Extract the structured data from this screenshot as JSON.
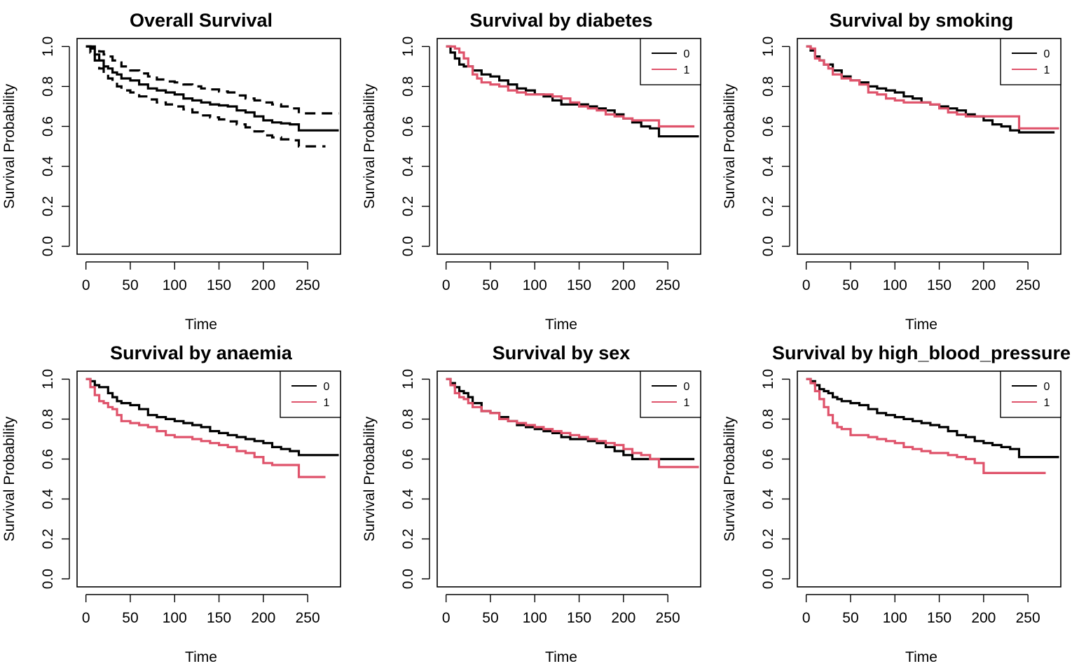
{
  "colors": {
    "group_0": "#000000",
    "group_1": "#DF536B",
    "axis": "#000000",
    "background": "#FFFFFF"
  },
  "chart_data": [
    {
      "type": "line",
      "title": "Overall Survival",
      "xlabel": "Time",
      "ylabel": "Survival Probability",
      "xlim": [
        -10,
        287
      ],
      "ylim": [
        -0.04,
        1.04
      ],
      "xticks": [
        "0",
        "50",
        "100",
        "150",
        "200",
        "250"
      ],
      "yticks": [
        "0.0",
        "0.2",
        "0.4",
        "0.6",
        "0.8",
        "1.0"
      ],
      "grid": false,
      "legend": null,
      "series": [
        {
          "style": "solid",
          "color": "#000000",
          "x": [
            0,
            5,
            10,
            15,
            20,
            25,
            30,
            35,
            40,
            50,
            60,
            70,
            80,
            90,
            100,
            110,
            120,
            130,
            140,
            150,
            160,
            170,
            180,
            190,
            200,
            210,
            220,
            230,
            240,
            250,
            260,
            270,
            285
          ],
          "y": [
            1.0,
            0.99,
            0.96,
            0.93,
            0.9,
            0.89,
            0.87,
            0.86,
            0.84,
            0.83,
            0.81,
            0.79,
            0.78,
            0.77,
            0.76,
            0.74,
            0.73,
            0.72,
            0.71,
            0.705,
            0.7,
            0.68,
            0.67,
            0.65,
            0.63,
            0.62,
            0.615,
            0.61,
            0.58,
            0.58,
            0.58,
            0.58,
            0.58
          ]
        },
        {
          "style": "dashed",
          "color": "#000000",
          "x": [
            0,
            5,
            10,
            15,
            20,
            25,
            30,
            35,
            40,
            50,
            60,
            70,
            80,
            90,
            100,
            110,
            120,
            130,
            140,
            150,
            160,
            170,
            180,
            190,
            200,
            210,
            220,
            230,
            240,
            250,
            260,
            270,
            285
          ],
          "y": [
            1.0,
            1.0,
            0.99,
            0.975,
            0.96,
            0.95,
            0.93,
            0.92,
            0.9,
            0.88,
            0.865,
            0.85,
            0.835,
            0.825,
            0.82,
            0.81,
            0.8,
            0.79,
            0.785,
            0.775,
            0.77,
            0.755,
            0.74,
            0.73,
            0.72,
            0.71,
            0.7,
            0.69,
            0.665,
            0.665,
            0.665,
            0.665,
            0.665
          ]
        },
        {
          "style": "dashed",
          "color": "#000000",
          "x": [
            0,
            5,
            10,
            15,
            20,
            25,
            30,
            35,
            40,
            50,
            60,
            70,
            80,
            90,
            100,
            110,
            120,
            130,
            140,
            150,
            160,
            170,
            180,
            190,
            200,
            210,
            220,
            230,
            240,
            250,
            260,
            270
          ],
          "y": [
            1.0,
            0.97,
            0.93,
            0.89,
            0.86,
            0.84,
            0.82,
            0.8,
            0.78,
            0.77,
            0.75,
            0.735,
            0.72,
            0.71,
            0.7,
            0.685,
            0.67,
            0.655,
            0.645,
            0.635,
            0.625,
            0.61,
            0.595,
            0.575,
            0.555,
            0.545,
            0.535,
            0.53,
            0.5,
            0.5,
            0.5,
            0.5
          ]
        }
      ]
    },
    {
      "type": "line",
      "title": "Survival by diabetes",
      "xlabel": "Time",
      "ylabel": "Survival Probability",
      "xlim": [
        -10,
        287
      ],
      "ylim": [
        -0.04,
        1.04
      ],
      "xticks": [
        "0",
        "50",
        "100",
        "150",
        "200",
        "250"
      ],
      "yticks": [
        "0.0",
        "0.2",
        "0.4",
        "0.6",
        "0.8",
        "1.0"
      ],
      "grid": false,
      "legend": "top-right",
      "series": [
        {
          "name": "0",
          "color": "#000000",
          "x": [
            0,
            5,
            10,
            15,
            20,
            30,
            40,
            50,
            60,
            70,
            80,
            90,
            100,
            110,
            120,
            130,
            140,
            150,
            160,
            170,
            180,
            190,
            200,
            210,
            220,
            230,
            240,
            250,
            260,
            270,
            285
          ],
          "y": [
            1.0,
            0.97,
            0.94,
            0.91,
            0.9,
            0.88,
            0.86,
            0.85,
            0.83,
            0.81,
            0.79,
            0.78,
            0.76,
            0.75,
            0.73,
            0.71,
            0.71,
            0.71,
            0.7,
            0.69,
            0.68,
            0.66,
            0.64,
            0.62,
            0.6,
            0.59,
            0.55,
            0.55,
            0.55,
            0.55,
            0.55
          ]
        },
        {
          "name": "1",
          "color": "#DF536B",
          "x": [
            0,
            5,
            10,
            15,
            20,
            25,
            30,
            35,
            40,
            50,
            60,
            70,
            80,
            90,
            100,
            110,
            120,
            130,
            140,
            150,
            160,
            170,
            180,
            190,
            200,
            210,
            220,
            230,
            240,
            250,
            260,
            270,
            280
          ],
          "y": [
            1.0,
            1.0,
            0.99,
            0.97,
            0.94,
            0.9,
            0.86,
            0.84,
            0.82,
            0.81,
            0.8,
            0.78,
            0.77,
            0.76,
            0.76,
            0.76,
            0.75,
            0.74,
            0.72,
            0.7,
            0.69,
            0.68,
            0.66,
            0.65,
            0.64,
            0.63,
            0.63,
            0.63,
            0.6,
            0.6,
            0.6,
            0.6,
            0.6
          ]
        }
      ]
    },
    {
      "type": "line",
      "title": "Survival by smoking",
      "xlabel": "Time",
      "ylabel": "Survival Probability",
      "xlim": [
        -10,
        287
      ],
      "ylim": [
        -0.04,
        1.04
      ],
      "xticks": [
        "0",
        "50",
        "100",
        "150",
        "200",
        "250"
      ],
      "yticks": [
        "0.0",
        "0.2",
        "0.4",
        "0.6",
        "0.8",
        "1.0"
      ],
      "grid": false,
      "legend": "top-right",
      "series": [
        {
          "name": "0",
          "color": "#000000",
          "x": [
            0,
            5,
            10,
            15,
            20,
            30,
            40,
            50,
            60,
            70,
            80,
            90,
            100,
            110,
            120,
            130,
            140,
            150,
            160,
            170,
            180,
            190,
            200,
            210,
            220,
            230,
            240,
            250,
            260,
            270,
            280
          ],
          "y": [
            1.0,
            0.98,
            0.95,
            0.93,
            0.91,
            0.88,
            0.85,
            0.83,
            0.82,
            0.8,
            0.79,
            0.78,
            0.77,
            0.75,
            0.74,
            0.72,
            0.71,
            0.7,
            0.69,
            0.68,
            0.66,
            0.65,
            0.63,
            0.61,
            0.6,
            0.58,
            0.57,
            0.57,
            0.57,
            0.57,
            0.57
          ]
        },
        {
          "name": "1",
          "color": "#DF536B",
          "x": [
            0,
            5,
            10,
            15,
            20,
            25,
            30,
            40,
            50,
            60,
            70,
            80,
            90,
            100,
            110,
            120,
            130,
            140,
            150,
            160,
            170,
            180,
            190,
            200,
            210,
            220,
            230,
            240,
            250,
            260,
            270,
            285
          ],
          "y": [
            1.0,
            0.99,
            0.94,
            0.93,
            0.91,
            0.89,
            0.86,
            0.84,
            0.83,
            0.81,
            0.77,
            0.76,
            0.74,
            0.73,
            0.72,
            0.72,
            0.72,
            0.71,
            0.69,
            0.67,
            0.66,
            0.65,
            0.65,
            0.65,
            0.65,
            0.65,
            0.65,
            0.59,
            0.59,
            0.59,
            0.59,
            0.59
          ]
        }
      ]
    },
    {
      "type": "line",
      "title": "Survival by anaemia",
      "xlabel": "Time",
      "ylabel": "Survival Probability",
      "xlim": [
        -10,
        287
      ],
      "ylim": [
        -0.04,
        1.04
      ],
      "xticks": [
        "0",
        "50",
        "100",
        "150",
        "200",
        "250"
      ],
      "yticks": [
        "0.0",
        "0.2",
        "0.4",
        "0.6",
        "0.8",
        "1.0"
      ],
      "grid": false,
      "legend": "top-right",
      "series": [
        {
          "name": "0",
          "color": "#000000",
          "x": [
            0,
            5,
            10,
            15,
            20,
            25,
            30,
            35,
            40,
            50,
            60,
            70,
            80,
            90,
            100,
            110,
            120,
            130,
            140,
            150,
            160,
            170,
            180,
            190,
            200,
            210,
            220,
            230,
            240,
            250,
            260,
            270,
            285
          ],
          "y": [
            1.0,
            0.99,
            0.97,
            0.96,
            0.96,
            0.93,
            0.91,
            0.89,
            0.88,
            0.87,
            0.85,
            0.82,
            0.81,
            0.8,
            0.79,
            0.78,
            0.77,
            0.76,
            0.74,
            0.73,
            0.72,
            0.71,
            0.7,
            0.69,
            0.68,
            0.66,
            0.65,
            0.64,
            0.62,
            0.62,
            0.62,
            0.62,
            0.62
          ]
        },
        {
          "name": "1",
          "color": "#DF536B",
          "x": [
            0,
            5,
            10,
            15,
            20,
            25,
            30,
            35,
            40,
            50,
            60,
            70,
            80,
            90,
            100,
            110,
            120,
            130,
            140,
            150,
            160,
            170,
            180,
            190,
            200,
            210,
            220,
            230,
            240,
            250,
            260,
            270
          ],
          "y": [
            1.0,
            0.96,
            0.92,
            0.89,
            0.88,
            0.86,
            0.85,
            0.82,
            0.79,
            0.78,
            0.77,
            0.76,
            0.74,
            0.72,
            0.71,
            0.71,
            0.7,
            0.69,
            0.68,
            0.67,
            0.66,
            0.64,
            0.63,
            0.61,
            0.58,
            0.57,
            0.57,
            0.57,
            0.51,
            0.51,
            0.51,
            0.51
          ]
        }
      ]
    },
    {
      "type": "line",
      "title": "Survival by sex",
      "xlabel": "Time",
      "ylabel": "Survival Probability",
      "xlim": [
        -10,
        287
      ],
      "ylim": [
        -0.04,
        1.04
      ],
      "xticks": [
        "0",
        "50",
        "100",
        "150",
        "200",
        "250"
      ],
      "yticks": [
        "0.0",
        "0.2",
        "0.4",
        "0.6",
        "0.8",
        "1.0"
      ],
      "grid": false,
      "legend": "top-right",
      "series": [
        {
          "name": "0",
          "color": "#000000",
          "x": [
            0,
            5,
            10,
            15,
            20,
            25,
            30,
            40,
            50,
            60,
            70,
            80,
            90,
            100,
            110,
            120,
            130,
            140,
            150,
            160,
            170,
            180,
            190,
            200,
            210,
            220,
            230,
            240,
            250,
            260,
            270,
            280
          ],
          "y": [
            1.0,
            0.98,
            0.96,
            0.94,
            0.93,
            0.91,
            0.88,
            0.84,
            0.83,
            0.81,
            0.79,
            0.77,
            0.76,
            0.75,
            0.74,
            0.73,
            0.71,
            0.7,
            0.7,
            0.69,
            0.68,
            0.66,
            0.64,
            0.62,
            0.6,
            0.6,
            0.6,
            0.6,
            0.6,
            0.6,
            0.6,
            0.6
          ]
        },
        {
          "name": "1",
          "color": "#DF536B",
          "x": [
            0,
            5,
            10,
            15,
            20,
            25,
            30,
            40,
            50,
            60,
            70,
            80,
            90,
            100,
            110,
            120,
            130,
            140,
            150,
            160,
            170,
            180,
            190,
            200,
            210,
            220,
            230,
            240,
            250,
            260,
            270,
            285
          ],
          "y": [
            1.0,
            0.97,
            0.93,
            0.91,
            0.9,
            0.88,
            0.86,
            0.84,
            0.83,
            0.8,
            0.79,
            0.78,
            0.77,
            0.76,
            0.75,
            0.74,
            0.73,
            0.72,
            0.71,
            0.7,
            0.69,
            0.68,
            0.67,
            0.65,
            0.63,
            0.62,
            0.6,
            0.56,
            0.56,
            0.56,
            0.56,
            0.56
          ]
        }
      ]
    },
    {
      "type": "line",
      "title": "Survival by high_blood_pressure",
      "xlabel": "Time",
      "ylabel": "Survival Probability",
      "xlim": [
        -10,
        287
      ],
      "ylim": [
        -0.04,
        1.04
      ],
      "xticks": [
        "0",
        "50",
        "100",
        "150",
        "200",
        "250"
      ],
      "yticks": [
        "0.0",
        "0.2",
        "0.4",
        "0.6",
        "0.8",
        "1.0"
      ],
      "grid": false,
      "legend": "top-right",
      "series": [
        {
          "name": "0",
          "color": "#000000",
          "x": [
            0,
            5,
            10,
            15,
            20,
            25,
            30,
            35,
            40,
            50,
            60,
            70,
            80,
            90,
            100,
            110,
            120,
            130,
            140,
            150,
            160,
            170,
            180,
            190,
            200,
            210,
            220,
            230,
            240,
            250,
            260,
            270,
            285
          ],
          "y": [
            1.0,
            0.99,
            0.97,
            0.95,
            0.94,
            0.93,
            0.91,
            0.9,
            0.89,
            0.88,
            0.87,
            0.85,
            0.83,
            0.82,
            0.81,
            0.8,
            0.79,
            0.78,
            0.77,
            0.76,
            0.74,
            0.72,
            0.71,
            0.69,
            0.68,
            0.67,
            0.66,
            0.65,
            0.61,
            0.61,
            0.61,
            0.61,
            0.61
          ]
        },
        {
          "name": "1",
          "color": "#DF536B",
          "x": [
            0,
            5,
            10,
            15,
            20,
            25,
            30,
            35,
            40,
            50,
            60,
            70,
            80,
            90,
            100,
            110,
            120,
            130,
            140,
            150,
            160,
            170,
            180,
            190,
            200,
            210,
            220,
            230,
            240,
            250,
            260,
            270
          ],
          "y": [
            1.0,
            0.98,
            0.94,
            0.9,
            0.86,
            0.82,
            0.78,
            0.76,
            0.75,
            0.72,
            0.72,
            0.71,
            0.7,
            0.69,
            0.68,
            0.66,
            0.65,
            0.64,
            0.63,
            0.63,
            0.62,
            0.61,
            0.6,
            0.58,
            0.53,
            0.53,
            0.53,
            0.53,
            0.53,
            0.53,
            0.53,
            0.53
          ]
        }
      ]
    }
  ]
}
